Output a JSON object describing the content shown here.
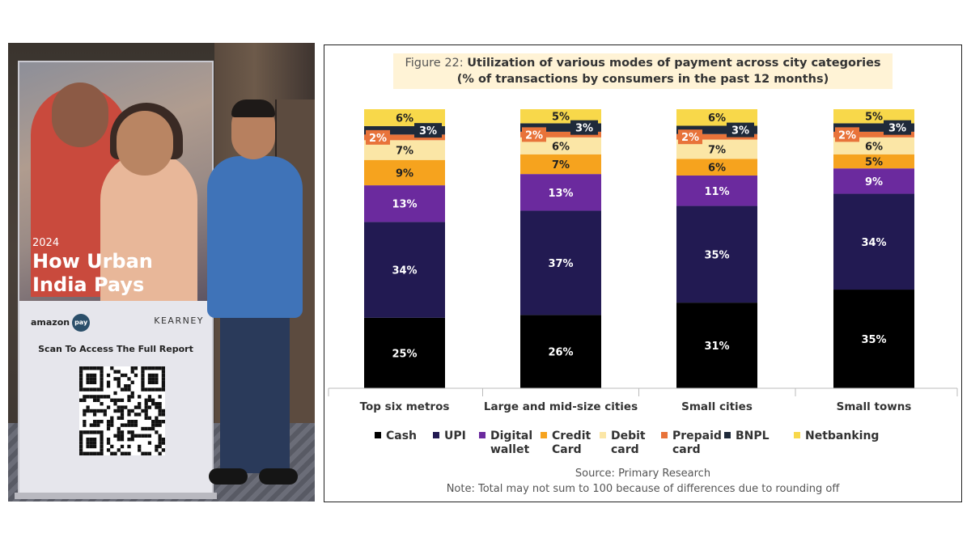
{
  "photo": {
    "banner_year": "2024",
    "banner_title_line1": "How Urban",
    "banner_title_line2": "India Pays",
    "brand_amazon": "amazon",
    "brand_pay": "pay",
    "brand_kearney": "KEARNEY",
    "scan_text": "Scan To Access The Full Report"
  },
  "chart_data": {
    "type": "bar",
    "stacked": true,
    "title_prefix": "Figure 22: ",
    "title": "Utilization of various modes of payment across city categories",
    "subtitle": "(% of transactions by consumers in the past 12 months)",
    "categories": [
      "Top six metros",
      "Large and mid-size cities",
      "Small cities",
      "Small towns"
    ],
    "series": [
      {
        "name": "Cash",
        "legend": [
          "Cash"
        ],
        "color": "#000000",
        "label_color": "#ffffff",
        "values": [
          25,
          26,
          31,
          35
        ]
      },
      {
        "name": "UPI",
        "legend": [
          "UPI"
        ],
        "color": "#221a52",
        "label_color": "#ffffff",
        "values": [
          34,
          37,
          35,
          34
        ]
      },
      {
        "name": "Digital wallet",
        "legend": [
          "Digital",
          "wallet"
        ],
        "color": "#6b2a9e",
        "label_color": "#ffffff",
        "values": [
          13,
          13,
          11,
          9
        ]
      },
      {
        "name": "Credit Card",
        "legend": [
          "Credit",
          "Card"
        ],
        "color": "#f6a31e",
        "label_color": "#222222",
        "values": [
          9,
          7,
          6,
          5
        ]
      },
      {
        "name": "Debit card",
        "legend": [
          "Debit",
          "card"
        ],
        "color": "#fbe6a6",
        "label_color": "#222222",
        "values": [
          7,
          6,
          7,
          6
        ]
      },
      {
        "name": "Prepaid card",
        "legend": [
          "Prepaid",
          "card"
        ],
        "color": "#e8733a",
        "label_color": "#ffffff",
        "values": [
          2,
          2,
          2,
          2
        ]
      },
      {
        "name": "BNPL",
        "legend": [
          "BNPL"
        ],
        "color": "#1f2a3a",
        "label_color": "#ffffff",
        "values": [
          3,
          3,
          3,
          3
        ]
      },
      {
        "name": "Netbanking",
        "legend": [
          "Netbanking"
        ],
        "color": "#f8d84a",
        "label_color": "#222222",
        "values": [
          6,
          5,
          6,
          5
        ]
      }
    ],
    "legend_position": "bottom",
    "grid": false,
    "source": "Source: Primary Research",
    "note": "Note: Total may not sum to 100 because of differences due to rounding off"
  }
}
